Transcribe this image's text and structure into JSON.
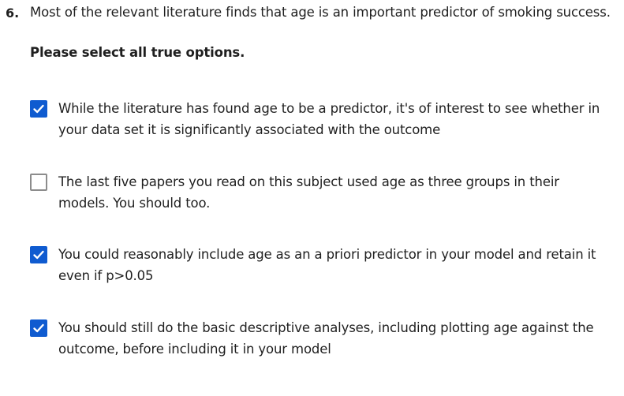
{
  "question": {
    "number": "6.",
    "text": "Most of the relevant literature finds that age is an important predictor of smoking success.",
    "instruction": "Please select all true options."
  },
  "options": [
    {
      "label": "While the literature has found age to be a predictor, it's of interest to see whether in your data set it is significantly associated with the outcome",
      "checked": true
    },
    {
      "label": "The last five papers you read on this subject used age as three groups in their models. You should too.",
      "checked": false
    },
    {
      "label": "You could reasonably include age as an a priori predictor in your model and retain it even if p>0.05",
      "checked": true
    },
    {
      "label": "You should still do the basic descriptive analyses, including plotting age against the outcome, before including it in your model",
      "checked": true
    }
  ],
  "colors": {
    "checkbox_checked": "#0f5bd0",
    "checkbox_unchecked_border": "#8c8c8c",
    "text": "#1f1f1f"
  }
}
